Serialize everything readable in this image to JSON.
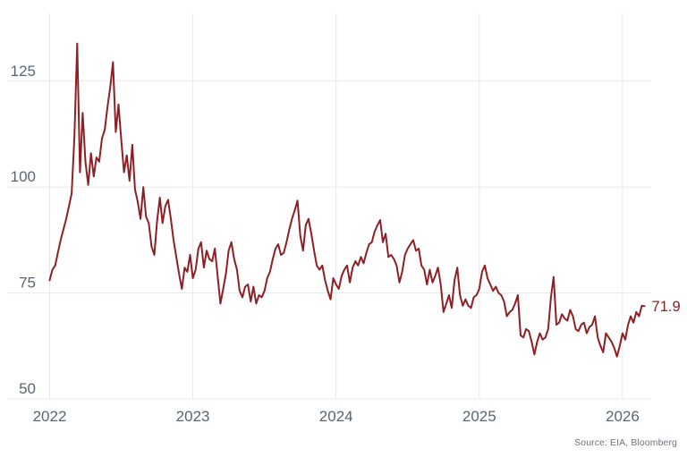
{
  "chart_data": {
    "type": "line",
    "title": "",
    "xlabel": "",
    "ylabel": "",
    "grid": true,
    "legend_position": "none",
    "xlim": [
      2021.86,
      2026.21
    ],
    "ylim": [
      50,
      141
    ],
    "x_ticks": [
      {
        "label": "2022",
        "year": 2022
      },
      {
        "label": "2023",
        "year": 2023
      },
      {
        "label": "2024",
        "year": 2024
      },
      {
        "label": "2025",
        "year": 2025
      },
      {
        "label": "2026",
        "year": 2026
      }
    ],
    "y_ticks": [
      {
        "label": "50",
        "value": 50
      },
      {
        "label": "75",
        "value": 75
      },
      {
        "label": "100",
        "value": 100
      },
      {
        "label": "125",
        "value": 125
      }
    ],
    "last_value_label": "71.9",
    "series": [
      {
        "name": "price",
        "color": "#8e2025",
        "x_start": 2022.0,
        "x_step": 0.0192308,
        "values": [
          78.0,
          80.5,
          81.5,
          84.5,
          87.5,
          90.0,
          92.5,
          95.5,
          98.5,
          112.0,
          133.9,
          103.5,
          117.5,
          106.0,
          100.5,
          108.0,
          102.5,
          107.0,
          106.0,
          111.5,
          113.5,
          119.0,
          123.5,
          129.5,
          113.0,
          119.5,
          111.0,
          103.5,
          107.5,
          101.5,
          110.0,
          99.5,
          96.5,
          92.5,
          100.0,
          93.0,
          91.5,
          86.0,
          84.0,
          92.0,
          97.5,
          91.5,
          95.5,
          97.0,
          92.5,
          87.5,
          83.5,
          79.5,
          76.0,
          81.0,
          80.0,
          84.0,
          78.5,
          80.5,
          85.5,
          87.0,
          81.0,
          85.0,
          83.0,
          82.5,
          85.5,
          79.0,
          72.5,
          76.0,
          79.5,
          85.0,
          87.0,
          83.0,
          80.5,
          75.5,
          74.0,
          76.5,
          77.0,
          73.0,
          76.5,
          72.5,
          74.5,
          74.0,
          75.5,
          78.5,
          80.0,
          83.0,
          85.5,
          86.5,
          84.0,
          84.5,
          87.0,
          90.0,
          92.5,
          94.5,
          96.8,
          88.5,
          85.0,
          91.0,
          92.5,
          89.0,
          85.0,
          81.5,
          80.5,
          81.5,
          78.0,
          75.5,
          73.5,
          78.5,
          77.0,
          76.0,
          79.0,
          80.5,
          81.5,
          77.5,
          81.0,
          82.5,
          81.5,
          83.5,
          82.0,
          84.5,
          86.5,
          87.0,
          89.5,
          91.0,
          92.2,
          87.0,
          89.0,
          83.5,
          84.0,
          83.0,
          81.5,
          77.5,
          80.0,
          84.0,
          85.5,
          86.5,
          87.5,
          85.0,
          85.5,
          81.5,
          80.5,
          77.0,
          80.5,
          77.5,
          79.0,
          81.0,
          77.0,
          70.5,
          72.5,
          74.5,
          71.5,
          78.0,
          81.0,
          74.5,
          72.0,
          73.5,
          72.0,
          71.5,
          74.0,
          74.5,
          76.0,
          80.0,
          81.5,
          78.5,
          77.0,
          75.5,
          76.5,
          75.0,
          74.5,
          73.0,
          69.5,
          70.5,
          71.0,
          72.5,
          74.5,
          65.0,
          64.5,
          66.5,
          66.0,
          63.5,
          60.5,
          63.5,
          65.5,
          64.0,
          64.5,
          66.5,
          74.0,
          78.8,
          67.5,
          68.0,
          70.0,
          69.0,
          68.5,
          71.0,
          69.5,
          66.5,
          66.0,
          67.5,
          68.0,
          65.5,
          67.0,
          67.5,
          69.5,
          64.5,
          62.5,
          61.0,
          65.5,
          64.5,
          63.5,
          62.0,
          60.0,
          62.5,
          65.5,
          64.0,
          67.5,
          69.5,
          68.0,
          70.5,
          69.5,
          72.0,
          71.9
        ]
      }
    ]
  },
  "footer": {
    "source_label": "Source: EIA, Bloomberg"
  },
  "colors": {
    "line": "#8e2025",
    "last_value_label": "#8e2025",
    "axis_text": "#5b6570",
    "gridline": "#e8e8e8",
    "background": "#ffffff"
  }
}
